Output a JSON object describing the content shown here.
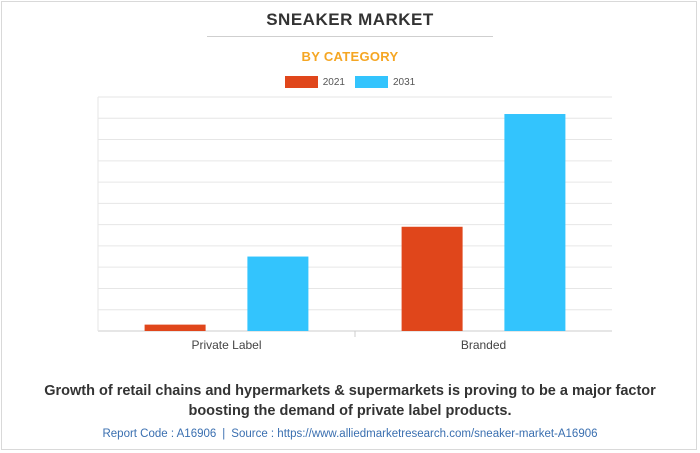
{
  "header": {
    "title": "SNEAKER MARKET",
    "subtitle": "BY CATEGORY"
  },
  "legend": [
    {
      "label": "2021",
      "color": "#e0461b"
    },
    {
      "label": "2031",
      "color": "#33c4fd"
    }
  ],
  "chart_data": {
    "type": "bar",
    "categories": [
      "Private Label",
      "Branded"
    ],
    "series": [
      {
        "name": "2021",
        "color": "#e0461b",
        "values": [
          0.3,
          4.9
        ]
      },
      {
        "name": "2031",
        "color": "#33c4fd",
        "values": [
          3.5,
          10.2
        ]
      }
    ],
    "ylim": [
      0,
      11
    ],
    "grid": true,
    "legend_position": "top-center"
  },
  "footer": {
    "text": "Growth of retail chains and hypermarkets & supermarkets is proving to be a major factor boosting the demand of private label products.",
    "report_code": "Report Code : A16906",
    "separator": "|",
    "source": "Source : https://www.alliedmarketresearch.com/sneaker-market-A16906"
  }
}
